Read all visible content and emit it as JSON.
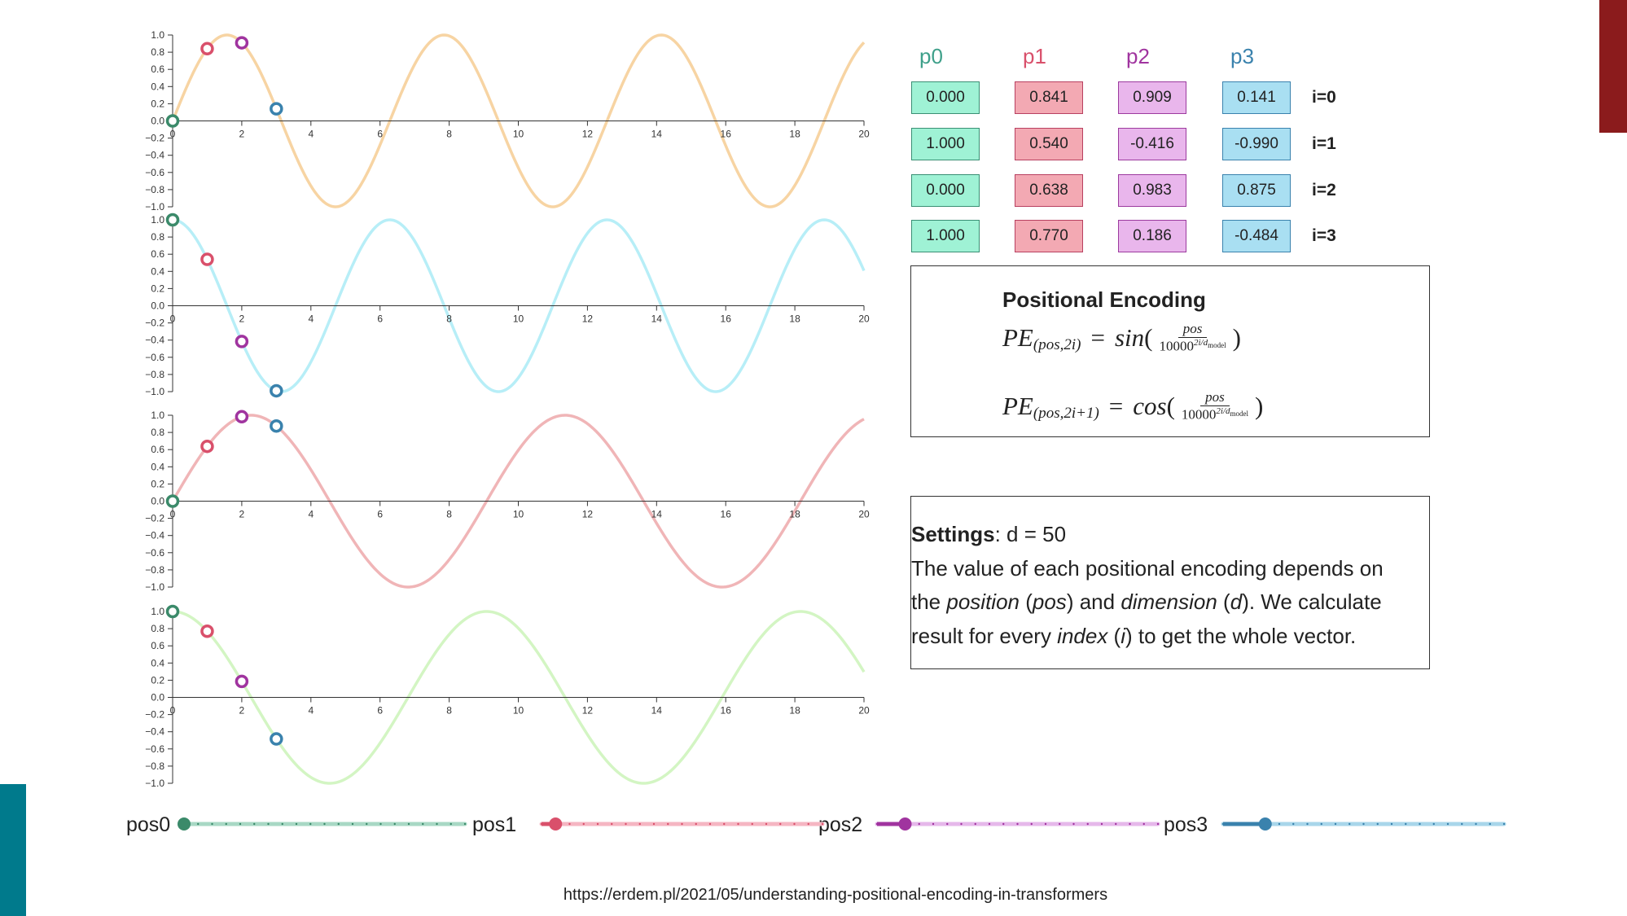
{
  "chart_data": {
    "type": "line",
    "function": "PE(pos,2i)=sin(pos/10000^(2i/d)); PE(pos,2i+1)=cos(pos/10000^(2i/d))",
    "d_model": 50,
    "xlim": [
      0,
      20
    ],
    "ylim": [
      -1,
      1
    ],
    "x_ticks": [
      "0",
      "2",
      "4",
      "6",
      "8",
      "10",
      "12",
      "14",
      "16",
      "18",
      "20"
    ],
    "y_ticks": [
      "1.0",
      "0.8",
      "0.6",
      "0.4",
      "0.2",
      "0.0",
      "−0.2",
      "−0.4",
      "−0.6",
      "−0.8",
      "−1.0"
    ],
    "series": [
      {
        "name": "i=0",
        "fn": "sin",
        "freq": 1.0,
        "color": "#f7d4a3"
      },
      {
        "name": "i=1",
        "fn": "cos",
        "freq": 1.0,
        "color": "#b7eef7"
      },
      {
        "name": "i=2",
        "fn": "sin",
        "freq": 0.6918,
        "color": "#f0b5b7"
      },
      {
        "name": "i=3",
        "fn": "cos",
        "freq": 0.6918,
        "color": "#d3f5c3"
      }
    ],
    "points": [
      {
        "name": "p0",
        "x": 0,
        "color": "#3b8a6a",
        "values": [
          0.0,
          1.0,
          0.0,
          1.0
        ]
      },
      {
        "name": "p1",
        "x": 1,
        "color": "#d9506b",
        "values": [
          0.841,
          0.54,
          0.638,
          0.77
        ]
      },
      {
        "name": "p2",
        "x": 2,
        "color": "#a0349f",
        "values": [
          0.909,
          -0.416,
          0.983,
          0.186
        ]
      },
      {
        "name": "p3",
        "x": 3,
        "color": "#3a82ad",
        "values": [
          0.141,
          -0.99,
          0.875,
          -0.484
        ]
      }
    ]
  },
  "table": {
    "columns": [
      {
        "label": "p0",
        "color": "#3fa08a",
        "bg": "#9ff2d5",
        "border": "#3a8f74",
        "values": [
          "0.000",
          "1.000",
          "0.000",
          "1.000"
        ]
      },
      {
        "label": "p1",
        "color": "#d9506b",
        "bg": "#f3a9b3",
        "border": "#b84060",
        "values": [
          "0.841",
          "0.540",
          "0.638",
          "0.770"
        ]
      },
      {
        "label": "p2",
        "color": "#a0349f",
        "bg": "#e9b6ec",
        "border": "#9c3a9e",
        "values": [
          "0.909",
          "-0.416",
          "0.983",
          "0.186"
        ]
      },
      {
        "label": "p3",
        "color": "#3a82ad",
        "bg": "#a9dff2",
        "border": "#3a82ad",
        "values": [
          "0.141",
          "-0.990",
          "0.875",
          "-0.484"
        ]
      }
    ],
    "rows": [
      "i=0",
      "i=1",
      "i=2",
      "i=3"
    ]
  },
  "formula": {
    "title": "Positional Encoding",
    "pe": "PE",
    "sub1": "(pos,2i)",
    "sub2": "(pos,2i+1)",
    "fn1": "sin",
    "fn2": "cos",
    "num": "pos",
    "den_base": "10000",
    "den_exp": "2i/d",
    "den_exp_sub": "model"
  },
  "settings": {
    "label": "Settings",
    "value": ": d = 50",
    "line2": "The value of each positional encoding depends on",
    "line3_a": "the ",
    "line3_b": "position",
    "line3_c": " (",
    "line3_d": "pos",
    "line3_e": ") and ",
    "line3_f": "dimension",
    "line3_g": " (",
    "line3_h": "d",
    "line3_i": "). We calculate",
    "line4_a": "result for every ",
    "line4_b": "index",
    "line4_c": " (",
    "line4_d": "i",
    "line4_e": ") to get the whole vector."
  },
  "sliders": [
    {
      "label": "pos0",
      "value": 0,
      "min": 0,
      "max": 20,
      "color": "#3b8a6a",
      "track": "#a8d8c4"
    },
    {
      "label": "pos1",
      "value": 1,
      "min": 0,
      "max": 20,
      "color": "#d9506b",
      "track": "#f5b6c2"
    },
    {
      "label": "pos2",
      "value": 2,
      "min": 0,
      "max": 20,
      "color": "#a0349f",
      "track": "#e6b8ea"
    },
    {
      "label": "pos3",
      "value": 3,
      "min": 0,
      "max": 20,
      "color": "#3a82ad",
      "track": "#a8d6ea"
    }
  ],
  "footer_url": "https://erdem.pl/2021/05/understanding-positional-encoding-in-transformers",
  "colors": {
    "red_bar": "#8b1b1c",
    "teal_bar": "#007a8c"
  }
}
